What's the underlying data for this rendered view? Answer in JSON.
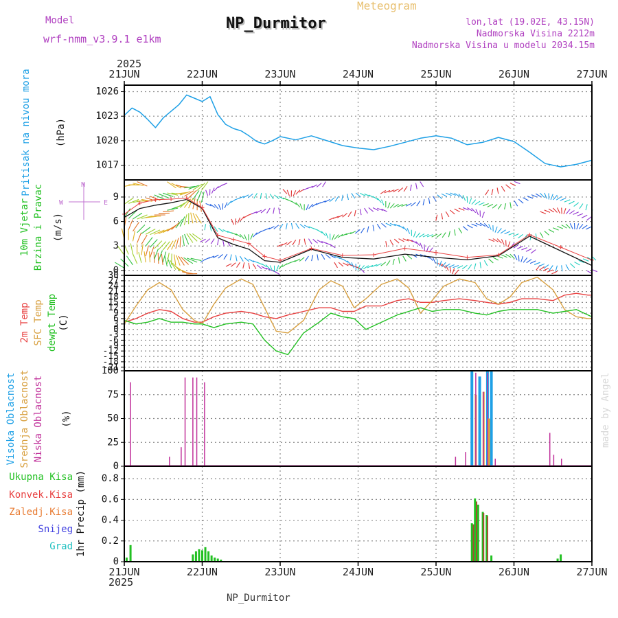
{
  "header": {
    "model_label": "Model",
    "model_name": "wrf-nmm_v3.9.1 e1km",
    "product": "Meteogram",
    "station": "NP_Durmitor",
    "lonlat": "lon,lat (19.02E, 43.15N)",
    "altitude": "Nadmorska Visina 2212m",
    "model_altitude": "Nadmorska Visina u modelu 2034.15m",
    "footer_station": "NP_Durmitor",
    "credit": "made by Angel",
    "year": "2025"
  },
  "colors": {
    "pressure": "#1ea0e6",
    "purple": "#b040c0",
    "green": "#22c022",
    "red": "#e84040",
    "orange": "#e87a30",
    "tan": "#d8a040",
    "blue": "#4040e0",
    "cyan": "#20c0c0",
    "magenta": "#c0309a"
  },
  "chart_data": [
    {
      "type": "line",
      "panel": "pressure",
      "ylabel_side": "Pritisak na nivou mora",
      "unit": "(hPa)",
      "x_ticks": [
        "21JUN",
        "22JUN",
        "23JUN",
        "24JUN",
        "25JUN",
        "26JUN",
        "27JUN"
      ],
      "ylim": [
        1015.2,
        1026.8
      ],
      "y_ticks": [
        1017,
        1020,
        1023,
        1026
      ],
      "x_days": [
        0,
        0.1,
        0.2,
        0.3,
        0.4,
        0.5,
        0.6,
        0.7,
        0.8,
        0.9,
        1.0,
        1.1,
        1.2,
        1.3,
        1.4,
        1.5,
        1.6,
        1.7,
        1.8,
        1.9,
        2.0,
        2.2,
        2.4,
        2.6,
        2.8,
        3.0,
        3.2,
        3.4,
        3.6,
        3.8,
        4.0,
        4.2,
        4.4,
        4.6,
        4.8,
        5.0,
        5.2,
        5.4,
        5.6,
        5.8,
        6.0
      ],
      "values": [
        1023.1,
        1024.0,
        1023.5,
        1022.6,
        1021.6,
        1022.8,
        1023.6,
        1024.4,
        1025.6,
        1025.2,
        1024.8,
        1025.4,
        1023.2,
        1022.0,
        1021.5,
        1021.2,
        1020.6,
        1019.9,
        1019.6,
        1020.0,
        1020.5,
        1020.1,
        1020.6,
        1020.0,
        1019.4,
        1019.1,
        1018.9,
        1019.3,
        1019.8,
        1020.3,
        1020.6,
        1020.3,
        1019.5,
        1019.8,
        1020.4,
        1019.9,
        1018.6,
        1017.2,
        1016.8,
        1017.1,
        1017.6
      ]
    },
    {
      "type": "line",
      "panel": "wind",
      "ylabel_side": [
        "10m Vjetar",
        "Brzina i Pravac"
      ],
      "unit": "(m/s)",
      "compass_label": "N",
      "compass_w": "W",
      "compass_e": "E",
      "ylim": [
        -0.6,
        11.1
      ],
      "y_ticks": [
        0,
        3,
        6,
        9
      ],
      "x_days": [
        0,
        0.2,
        0.4,
        0.6,
        0.8,
        1.0,
        1.2,
        1.4,
        1.6,
        1.8,
        2.0,
        2.4,
        2.8,
        3.2,
        3.6,
        4.0,
        4.4,
        4.8,
        5.2,
        5.6,
        6.0
      ],
      "values": [
        6.5,
        7.6,
        8.0,
        8.3,
        8.7,
        7.6,
        4.0,
        3.2,
        2.6,
        1.2,
        1.0,
        2.6,
        1.6,
        1.4,
        2.0,
        1.6,
        1.3,
        1.8,
        4.2,
        2.4,
        0.6
      ]
    },
    {
      "type": "line",
      "panel": "temperature",
      "ylabel_side": [
        "2m Temp",
        "SFC Temp",
        "dewpt Temp"
      ],
      "unit": "(C)",
      "ylim": [
        -23,
        30
      ],
      "y_ticks": [
        30,
        27,
        24,
        21,
        18,
        15,
        12,
        9,
        6,
        3,
        0,
        -3,
        -6,
        -9,
        -12,
        -15,
        -18,
        -21
      ],
      "x_days": [
        0,
        0.15,
        0.3,
        0.45,
        0.6,
        0.75,
        0.9,
        1.0,
        1.15,
        1.3,
        1.5,
        1.65,
        1.8,
        1.95,
        2.1,
        2.3,
        2.5,
        2.65,
        2.8,
        2.95,
        3.1,
        3.3,
        3.5,
        3.65,
        3.8,
        3.95,
        4.1,
        4.3,
        4.5,
        4.65,
        4.8,
        4.95,
        5.1,
        5.3,
        5.5,
        5.65,
        5.8,
        5.95,
        6.0
      ],
      "series": [
        {
          "name": "2m Temp",
          "values": [
            4,
            6,
            9,
            11,
            10,
            6,
            4,
            4,
            7,
            9,
            10,
            9,
            7,
            6,
            8,
            10,
            12,
            12,
            10,
            10,
            13,
            13,
            16,
            17,
            15,
            15,
            16,
            17,
            16,
            15,
            14,
            15,
            17,
            17,
            16,
            19,
            20,
            19,
            19
          ]
        },
        {
          "name": "SFC Temp",
          "values": [
            3,
            13,
            22,
            26,
            22,
            11,
            5,
            3,
            14,
            23,
            28,
            25,
            12,
            -1,
            -2,
            5,
            22,
            27,
            24,
            12,
            17,
            25,
            28,
            23,
            9,
            16,
            24,
            28,
            26,
            17,
            14,
            18,
            26,
            29,
            22,
            11,
            7,
            6,
            6
          ]
        },
        {
          "name": "dewpt Temp",
          "values": [
            5,
            3,
            4,
            6,
            4,
            4,
            3,
            3,
            1,
            3,
            4,
            3,
            -6,
            -12,
            -14,
            -2,
            4,
            9,
            7,
            6,
            0,
            4,
            8,
            10,
            12,
            10,
            11,
            11,
            9,
            8,
            10,
            11,
            11,
            11,
            9,
            10,
            11,
            8,
            7
          ]
        }
      ]
    },
    {
      "type": "bar",
      "panel": "clouds",
      "ylabel_side": [
        "Visoka Oblacnost",
        "Srednja Oblacnost",
        "Niska Oblacnost"
      ],
      "unit": "(%)",
      "ylim": [
        0,
        100
      ],
      "y_ticks": [
        0,
        25,
        50,
        75,
        100
      ],
      "series": [
        {
          "name": "Visoka Oblacnost",
          "x": [
            4.46,
            4.56,
            4.66,
            4.71
          ],
          "values": [
            100,
            94,
            100,
            100
          ]
        },
        {
          "name": "Srednja Oblacnost",
          "x": [
            4.51,
            4.61,
            4.68
          ],
          "values": [
            75,
            78,
            50
          ]
        },
        {
          "name": "Niska Oblacnost",
          "x": [
            0.08,
            0.58,
            0.73,
            0.78,
            0.88,
            0.93,
            1.03,
            4.25,
            4.38,
            4.51,
            4.61,
            4.66,
            4.76,
            5.46,
            5.51,
            5.61
          ],
          "values": [
            88,
            10,
            20,
            93,
            93,
            93,
            88,
            10,
            15,
            98,
            78,
            98,
            8,
            35,
            12,
            8
          ]
        }
      ]
    },
    {
      "type": "bar",
      "panel": "precipitation",
      "ylabel_side": [
        "Ukupna Kisa",
        "Konvek.Kisa",
        "Zaledj.Kisa",
        "Snijeg",
        "Grad"
      ],
      "unit": "1hr Precip (mm)",
      "ylim": [
        0,
        0.92
      ],
      "y_ticks": [
        0,
        0.2,
        0.4,
        0.6,
        0.8
      ],
      "series": [
        {
          "name": "Ukupna Kisa",
          "x": [
            0.03,
            0.08,
            0.88,
            0.92,
            0.96,
            1.0,
            1.04,
            1.08,
            1.12,
            1.16,
            1.2,
            1.24,
            4.46,
            4.5,
            4.54,
            4.6,
            4.65,
            4.71,
            5.56,
            5.6
          ],
          "values": [
            0.04,
            0.16,
            0.07,
            0.1,
            0.12,
            0.11,
            0.14,
            0.1,
            0.06,
            0.04,
            0.03,
            0.02,
            0.37,
            0.61,
            0.55,
            0.48,
            0.45,
            0.06,
            0.03,
            0.07
          ]
        },
        {
          "name": "Konvek.Kisa",
          "x": [
            4.48,
            4.52,
            4.61,
            4.66
          ],
          "values": [
            0.36,
            0.58,
            0.47,
            0.44
          ]
        }
      ]
    }
  ]
}
